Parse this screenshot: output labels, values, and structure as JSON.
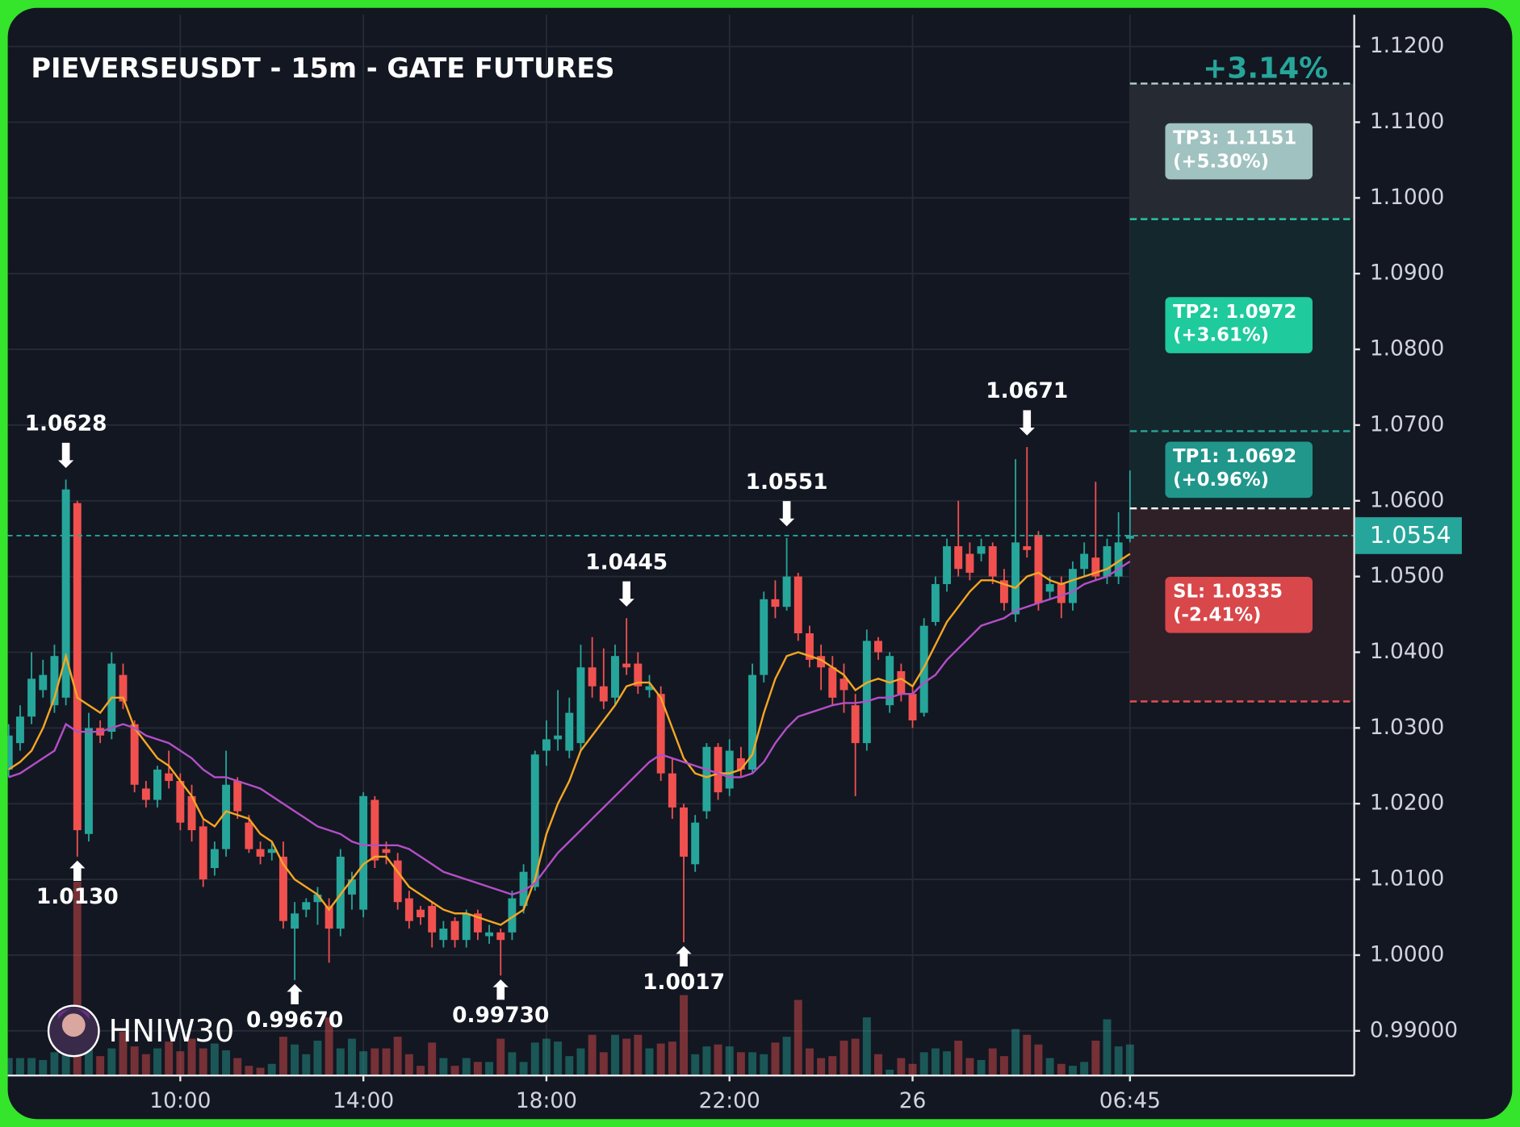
{
  "chart_data": {
    "type": "candlestick",
    "title": "PIEVERSEUSDT - 15m - GATE FUTURES",
    "change": "+3.14%",
    "watermark": "HNIW30",
    "ylim": [
      0.9841,
      1.1242
    ],
    "xlim": [
      -0.08,
      117.6
    ],
    "yticks": [
      {
        "value": 0.99,
        "label": "0.99000"
      },
      {
        "value": 1.0,
        "label": "1.0000"
      },
      {
        "value": 1.01,
        "label": "1.0100"
      },
      {
        "value": 1.02,
        "label": "1.0200"
      },
      {
        "value": 1.03,
        "label": "1.0300"
      },
      {
        "value": 1.04,
        "label": "1.0400"
      },
      {
        "value": 1.05,
        "label": "1.0500"
      },
      {
        "value": 1.06,
        "label": "1.0600"
      },
      {
        "value": 1.07,
        "label": "1.0700"
      },
      {
        "value": 1.08,
        "label": "1.0800"
      },
      {
        "value": 1.09,
        "label": "1.0900"
      },
      {
        "value": 1.1,
        "label": "1.1000"
      },
      {
        "value": 1.11,
        "label": "1.1100"
      },
      {
        "value": 1.12,
        "label": "1.1200"
      }
    ],
    "xticks": [
      {
        "value": 15,
        "label": "10:00"
      },
      {
        "value": 31,
        "label": "14:00"
      },
      {
        "value": 47,
        "label": "18:00"
      },
      {
        "value": 63,
        "label": "22:00"
      },
      {
        "value": 79,
        "label": "26"
      },
      {
        "value": 98,
        "label": "06:45"
      }
    ],
    "grid": true,
    "up_color": "#26a69a",
    "down_color": "#f0514f",
    "open": [
      1.0245,
      1.028,
      1.0315,
      1.035,
      1.033,
      1.034,
      1.0597,
      1.016,
      1.03,
      1.0295,
      1.037,
      1.0305,
      1.022,
      1.0205,
      1.024,
      1.023,
      1.021,
      1.017,
      1.0115,
      1.014,
      1.023,
      1.0175,
      1.014,
      1.0135,
      1.013,
      1.0035,
      1.006,
      1.007,
      1.0065,
      1.0035,
      1.008,
      1.006,
      1.0205,
      1.014,
      1.0125,
      1.0075,
      1.006,
      1.0065,
      1.002,
      1.0045,
      1.002,
      1.0055,
      1.0025,
      1.003,
      1.003,
      1.0065,
      1.009,
      1.027,
      1.0285,
      1.027,
      1.028,
      1.038,
      1.0355,
      1.034,
      1.0385,
      1.0385,
      1.035,
      1.0345,
      1.024,
      1.0195,
      1.012,
      1.019,
      1.0275,
      1.022,
      1.026,
      1.0245,
      1.037,
      1.047,
      1.046,
      1.05,
      1.0425,
      1.0395,
      1.038,
      1.0365,
      1.033,
      1.028,
      1.0415,
      1.033,
      1.0375,
      1.0345,
      1.032,
      1.044,
      1.049,
      1.054,
      1.053,
      1.053,
      1.054,
      1.0495,
      1.045,
      1.054,
      1.0555,
      1.048,
      1.049,
      1.0465,
      1.051,
      1.0525,
      1.05,
      1.05,
      1.055
    ],
    "high": [
      1.0305,
      1.033,
      1.04,
      1.039,
      1.041,
      1.0628,
      1.06,
      1.032,
      1.031,
      1.04,
      1.0385,
      1.031,
      1.023,
      1.025,
      1.027,
      1.024,
      1.0225,
      1.018,
      1.015,
      1.027,
      1.0235,
      1.0185,
      1.015,
      1.015,
      1.015,
      1.007,
      1.0075,
      1.009,
      1.0075,
      1.014,
      1.011,
      1.0215,
      1.021,
      1.015,
      1.0135,
      1.0085,
      1.0065,
      1.007,
      1.0045,
      1.005,
      1.006,
      1.006,
      1.004,
      1.0035,
      1.0085,
      1.012,
      1.027,
      1.031,
      1.035,
      1.034,
      1.041,
      1.042,
      1.0405,
      1.041,
      1.0445,
      1.04,
      1.037,
      1.0355,
      1.026,
      1.02,
      1.0185,
      1.028,
      1.028,
      1.0285,
      1.0275,
      1.0385,
      1.048,
      1.0495,
      1.0551,
      1.0505,
      1.0435,
      1.041,
      1.0395,
      1.0385,
      1.0345,
      1.043,
      1.042,
      1.04,
      1.0385,
      1.0355,
      1.0445,
      1.05,
      1.055,
      1.06,
      1.0545,
      1.055,
      1.0545,
      1.051,
      1.0655,
      1.0671,
      1.056,
      1.05,
      1.05,
      1.052,
      1.0545,
      1.0625,
      1.055,
      1.0585,
      1.064
    ],
    "low": [
      1.0235,
      1.027,
      1.0305,
      1.034,
      1.032,
      1.033,
      1.013,
      1.015,
      1.028,
      1.0285,
      1.0325,
      1.0215,
      1.0195,
      1.0195,
      1.022,
      1.0165,
      1.015,
      1.009,
      1.0105,
      1.013,
      1.018,
      1.0135,
      1.012,
      1.0125,
      1.0035,
      0.9967,
      1.005,
      1.004,
      0.999,
      1.0025,
      1.006,
      1.005,
      1.0115,
      1.012,
      1.006,
      1.0035,
      1.004,
      1.001,
      1.001,
      1.001,
      1.001,
      1.002,
      1.0015,
      0.9973,
      1.002,
      1.0055,
      1.0085,
      1.025,
      1.027,
      1.026,
      1.027,
      1.034,
      1.0325,
      1.033,
      1.037,
      1.0345,
      1.034,
      1.023,
      1.018,
      1.0017,
      1.011,
      1.018,
      1.0205,
      1.021,
      1.0235,
      1.024,
      1.036,
      1.0445,
      1.0455,
      1.0415,
      1.038,
      1.035,
      1.033,
      1.032,
      1.021,
      1.027,
      1.039,
      1.032,
      1.0335,
      1.03,
      1.0315,
      1.0435,
      1.048,
      1.05,
      1.0495,
      1.052,
      1.049,
      1.0455,
      1.044,
      1.0525,
      1.0455,
      1.047,
      1.0445,
      1.0455,
      1.05,
      1.0495,
      1.049,
      1.049,
      1.0545
    ],
    "close": [
      1.029,
      1.0315,
      1.0365,
      1.037,
      1.0395,
      1.0615,
      1.0165,
      1.03,
      1.029,
      1.0385,
      1.0335,
      1.0225,
      1.0205,
      1.0245,
      1.023,
      1.0175,
      1.0165,
      1.01,
      1.014,
      1.0225,
      1.019,
      1.014,
      1.013,
      1.014,
      1.0045,
      1.0055,
      1.007,
      1.008,
      1.0035,
      1.013,
      1.01,
      1.021,
      1.0125,
      1.0135,
      1.007,
      1.0045,
      1.005,
      1.003,
      1.0035,
      1.002,
      1.0055,
      1.003,
      1.003,
      1.002,
      1.0075,
      1.011,
      1.0265,
      1.0285,
      1.029,
      1.032,
      1.038,
      1.0355,
      1.0335,
      1.0395,
      1.038,
      1.0355,
      1.0355,
      1.024,
      1.0195,
      1.013,
      1.0175,
      1.0275,
      1.0215,
      1.027,
      1.0245,
      1.037,
      1.047,
      1.046,
      1.05,
      1.0425,
      1.039,
      1.038,
      1.034,
      1.035,
      1.028,
      1.0415,
      1.04,
      1.0395,
      1.0345,
      1.031,
      1.0435,
      1.049,
      1.054,
      1.051,
      1.0505,
      1.054,
      1.05,
      1.0465,
      1.0545,
      1.0535,
      1.0465,
      1.049,
      1.0465,
      1.051,
      1.053,
      1.05,
      1.054,
      1.0545,
      1.0554
    ],
    "volume": [
      18,
      18,
      18,
      16,
      24,
      30,
      200,
      40,
      20,
      28,
      45,
      30,
      22,
      28,
      35,
      25,
      38,
      28,
      33,
      26,
      18,
      10,
      8,
      12,
      40,
      32,
      22,
      36,
      60,
      28,
      38,
      25,
      28,
      28,
      40,
      22,
      10,
      34,
      18,
      10,
      18,
      14,
      14,
      38,
      24,
      14,
      34,
      38,
      35,
      20,
      28,
      42,
      24,
      42,
      38,
      42,
      28,
      33,
      35,
      83,
      22,
      30,
      32,
      30,
      24,
      24,
      22,
      34,
      40,
      78,
      28,
      18,
      20,
      36,
      38,
      60,
      22,
      6,
      18,
      12,
      24,
      28,
      25,
      36,
      18,
      16,
      28,
      20,
      48,
      42,
      32,
      18,
      12,
      10,
      14,
      36,
      58,
      30,
      32
    ],
    "ma": [
      {
        "color": "#f5a623",
        "values": [
          1.0245,
          1.0255,
          1.027,
          1.03,
          1.034,
          1.0395,
          1.034,
          1.033,
          1.032,
          1.034,
          1.034,
          1.03,
          1.028,
          1.026,
          1.025,
          1.023,
          1.021,
          1.018,
          1.017,
          1.019,
          1.0185,
          1.018,
          1.016,
          1.015,
          1.012,
          1.01,
          1.009,
          1.008,
          1.006,
          1.008,
          1.01,
          1.012,
          1.013,
          1.013,
          1.011,
          1.009,
          1.008,
          1.007,
          1.006,
          1.0055,
          1.0055,
          1.005,
          1.0045,
          1.004,
          1.005,
          1.006,
          1.01,
          1.016,
          1.02,
          1.023,
          1.027,
          1.029,
          1.031,
          1.033,
          1.0355,
          1.036,
          1.036,
          1.034,
          1.03,
          1.026,
          1.024,
          1.0235,
          1.024,
          1.024,
          1.0245,
          1.0265,
          1.032,
          1.0365,
          1.0395,
          1.04,
          1.0395,
          1.039,
          1.038,
          1.037,
          1.035,
          1.036,
          1.0365,
          1.036,
          1.0365,
          1.0355,
          1.038,
          1.041,
          1.044,
          1.046,
          1.048,
          1.0495,
          1.0495,
          1.049,
          1.0485,
          1.05,
          1.0505,
          1.0495,
          1.049,
          1.0495,
          1.05,
          1.0505,
          1.051,
          1.052,
          1.053
        ]
      },
      {
        "color": "#b34fc6",
        "values": [
          1.0235,
          1.024,
          1.025,
          1.026,
          1.027,
          1.0305,
          1.0295,
          1.0295,
          1.0295,
          1.03,
          1.0305,
          1.03,
          1.029,
          1.0285,
          1.028,
          1.027,
          1.026,
          1.0245,
          1.0235,
          1.0235,
          1.023,
          1.0225,
          1.022,
          1.021,
          1.02,
          1.019,
          1.018,
          1.017,
          1.0165,
          1.016,
          1.015,
          1.0145,
          1.0145,
          1.0145,
          1.0145,
          1.014,
          1.013,
          1.012,
          1.011,
          1.0105,
          1.01,
          1.0095,
          1.009,
          1.0085,
          1.008,
          1.0085,
          1.0095,
          1.0115,
          1.0135,
          1.015,
          1.0165,
          1.018,
          1.0195,
          1.021,
          1.0225,
          1.024,
          1.0255,
          1.0265,
          1.026,
          1.0255,
          1.025,
          1.0245,
          1.024,
          1.0235,
          1.0235,
          1.024,
          1.0255,
          1.028,
          1.03,
          1.0315,
          1.032,
          1.0325,
          1.033,
          1.0333,
          1.0333,
          1.0335,
          1.034,
          1.034,
          1.0345,
          1.0345,
          1.036,
          1.037,
          1.039,
          1.0405,
          1.042,
          1.0435,
          1.044,
          1.0445,
          1.0455,
          1.046,
          1.0465,
          1.047,
          1.0475,
          1.048,
          1.049,
          1.0495,
          1.05,
          1.051,
          1.052
        ]
      }
    ],
    "annotations": [
      {
        "x": 5,
        "value": 1.0628,
        "label": "1.0628",
        "position": "above"
      },
      {
        "x": 6,
        "value": 1.013,
        "label": "1.0130",
        "position": "below"
      },
      {
        "x": 25,
        "value": 0.9967,
        "label": "0.99670",
        "position": "below"
      },
      {
        "x": 43,
        "value": 0.9973,
        "label": "0.99730",
        "position": "below"
      },
      {
        "x": 54,
        "value": 1.0445,
        "label": "1.0445",
        "position": "above"
      },
      {
        "x": 59,
        "value": 1.0017,
        "label": "1.0017",
        "position": "below"
      },
      {
        "x": 68,
        "value": 1.0551,
        "label": "1.0551",
        "position": "above"
      },
      {
        "x": 89,
        "value": 1.0671,
        "label": "1.0671",
        "position": "above"
      }
    ],
    "last_price": 1.0554,
    "entry": 1.059,
    "levels": [
      {
        "label": "TP3: 1.1151",
        "change": "(+5.30%)",
        "value": 1.1151,
        "color": "#a0c2c0",
        "line_color": "#b9cfcf",
        "zone_color": "#262b33"
      },
      {
        "label": "TP2: 1.0972",
        "change": "(+3.61%)",
        "value": 1.0972,
        "color": "#1fca9c",
        "line_color": "#2bc4a0",
        "zone_color": "#13272c"
      },
      {
        "label": "TP1: 1.0692",
        "change": "(+0.96%)",
        "value": 1.0692,
        "color": "#21968b",
        "line_color": "#2aa596",
        "zone_color": "#13272c"
      },
      {
        "label": "SL: 1.0335",
        "change": "(-2.41%)",
        "value": 1.0335,
        "color": "#d8474a",
        "line_color": "#e05050",
        "zone_color": "#2f1f27"
      }
    ]
  }
}
